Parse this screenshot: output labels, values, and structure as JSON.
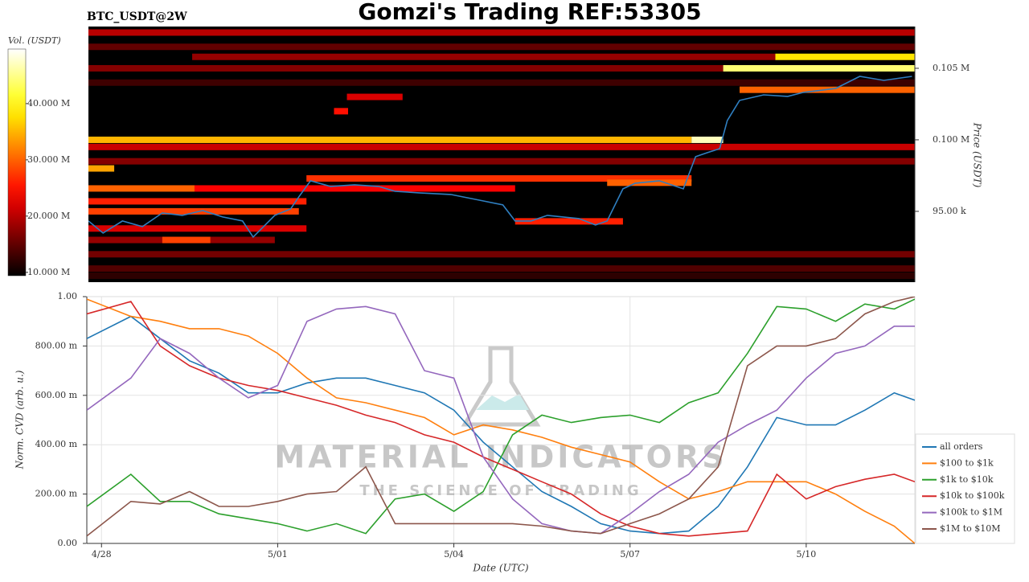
{
  "title": "Gomzi's Trading REF:53305",
  "symbol": "BTC_USDT@2W",
  "chart_data": [
    {
      "type": "heatmap",
      "ylabel": "Price (USDT)",
      "colorbar_label": "Vol. (USDT)",
      "colormap": "hot",
      "xlim": [
        -0.25,
        13.85
      ],
      "ylim": [
        90050,
        107920
      ],
      "yticks": [
        {
          "value": 95000,
          "label": "95.00 k"
        },
        {
          "value": 100000,
          "label": "0.100 M"
        },
        {
          "value": 105000,
          "label": "0.105 M"
        }
      ],
      "clim": [
        9.4,
        49.7
      ],
      "cticks": [
        {
          "value": 10,
          "label": "10.000 M"
        },
        {
          "value": 20,
          "label": "20.000 M"
        },
        {
          "value": 30,
          "label": "30.000 M"
        },
        {
          "value": 40,
          "label": "40.000 M"
        }
      ],
      "bands": [
        {
          "price": 107500,
          "start": -0.25,
          "end": 13.85,
          "volume": 20
        },
        {
          "price": 106500,
          "start": -0.25,
          "end": 13.85,
          "volume": 15
        },
        {
          "price": 105800,
          "start": 1.52,
          "end": 11.47,
          "volume": 18
        },
        {
          "price": 105800,
          "start": 11.47,
          "end": 13.85,
          "volume": 38
        },
        {
          "price": 105000,
          "start": -0.25,
          "end": 10.58,
          "volume": 17
        },
        {
          "price": 105000,
          "start": 10.58,
          "end": 13.85,
          "volume": 44
        },
        {
          "price": 104000,
          "start": -0.25,
          "end": 13.85,
          "volume": 13
        },
        {
          "price": 103500,
          "start": 10.86,
          "end": 13.85,
          "volume": 30
        },
        {
          "price": 103000,
          "start": 4.16,
          "end": 5.11,
          "volume": 22
        },
        {
          "price": 102000,
          "start": 3.94,
          "end": 4.18,
          "volume": 25
        },
        {
          "price": 100000,
          "start": -0.25,
          "end": 10.04,
          "volume": 35
        },
        {
          "price": 100000,
          "start": 10.04,
          "end": 10.58,
          "volume": 47
        },
        {
          "price": 99500,
          "start": -0.25,
          "end": 13.85,
          "volume": 21
        },
        {
          "price": 98500,
          "start": -0.25,
          "end": 13.85,
          "volume": 17
        },
        {
          "price": 98000,
          "start": -0.25,
          "end": 0.19,
          "volume": 34
        },
        {
          "price": 97300,
          "start": 3.47,
          "end": 10.04,
          "volume": 27
        },
        {
          "price": 97000,
          "start": 8.6,
          "end": 10.04,
          "volume": 30
        },
        {
          "price": 96600,
          "start": -0.25,
          "end": 1.56,
          "volume": 30
        },
        {
          "price": 96600,
          "start": 1.56,
          "end": 7.03,
          "volume": 24
        },
        {
          "price": 95700,
          "start": -0.25,
          "end": 3.47,
          "volume": 26
        },
        {
          "price": 95000,
          "start": -0.25,
          "end": 3.34,
          "volume": 28
        },
        {
          "price": 94300,
          "start": 7.03,
          "end": 8.87,
          "volume": 26
        },
        {
          "price": 93800,
          "start": -0.25,
          "end": 3.47,
          "volume": 22
        },
        {
          "price": 93000,
          "start": -0.25,
          "end": 2.93,
          "volume": 18
        },
        {
          "price": 93000,
          "start": 1.01,
          "end": 1.83,
          "volume": 28
        },
        {
          "price": 92000,
          "start": -0.25,
          "end": 13.85,
          "volume": 16
        },
        {
          "price": 91000,
          "start": -0.25,
          "end": 13.85,
          "volume": 14
        },
        {
          "price": 90500,
          "start": -0.25,
          "end": 13.85,
          "volume": 12
        }
      ],
      "line": {
        "color": "#2f7fc1",
        "x": [
          -0.25,
          0,
          0.33,
          0.67,
          1.01,
          1.35,
          1.7,
          2.04,
          2.38,
          2.56,
          2.93,
          3.2,
          3.34,
          3.54,
          3.88,
          4.29,
          4.7,
          4.98,
          5.39,
          5.93,
          6.48,
          6.82,
          7.03,
          7.3,
          7.58,
          7.85,
          8.12,
          8.4,
          8.6,
          8.87,
          9.08,
          9.49,
          9.9,
          10.11,
          10.31,
          10.52,
          10.65,
          10.86,
          11.27,
          11.68,
          11.95,
          12.5,
          12.91,
          13.32,
          13.8
        ],
        "values": [
          94326,
          93483,
          94326,
          93933,
          94888,
          94719,
          95056,
          94607,
          94326,
          93202,
          94719,
          95168,
          96011,
          97135,
          96742,
          96854,
          96742,
          96404,
          96292,
          96180,
          95730,
          95449,
          94326,
          94326,
          94719,
          94607,
          94494,
          94045,
          94326,
          96573,
          96966,
          97135,
          96573,
          98820,
          99101,
          99382,
          101348,
          102753,
          103146,
          103034,
          103315,
          103595,
          104438,
          104157,
          104438
        ]
      }
    },
    {
      "type": "line",
      "xlabel": "Date (UTC)",
      "ylabel": "Norm. CVD (arb. u.)",
      "annotations": [
        "MATERIAL INDICATORS",
        "THE SCIENCE OF TRADING"
      ],
      "grid": true,
      "legend": "right",
      "xlim": [
        -0.25,
        13.85
      ],
      "ylim": [
        0,
        1
      ],
      "xticks": [
        {
          "value": 0,
          "label": "4/28"
        },
        {
          "value": 3,
          "label": "5/01"
        },
        {
          "value": 6,
          "label": "5/04"
        },
        {
          "value": 9,
          "label": "5/07"
        },
        {
          "value": 12,
          "label": "5/10"
        }
      ],
      "yticks": [
        {
          "value": 0,
          "label": "0.00"
        },
        {
          "value": 0.2,
          "label": "200.00 m"
        },
        {
          "value": 0.4,
          "label": "400.00 m"
        },
        {
          "value": 0.6,
          "label": "600.00 m"
        },
        {
          "value": 0.8,
          "label": "800.00 m"
        },
        {
          "value": 1,
          "label": "1.00"
        }
      ],
      "x": [
        -0.25,
        0.5,
        1,
        1.5,
        2,
        2.5,
        3,
        3.5,
        4,
        4.5,
        5,
        5.5,
        6,
        6.5,
        7,
        7.5,
        8,
        8.5,
        9,
        9.5,
        10,
        10.5,
        11,
        11.5,
        12,
        12.5,
        13,
        13.5,
        13.85
      ],
      "series": [
        {
          "name": "all orders",
          "color": "#1f77b4",
          "values": [
            0.83,
            0.92,
            0.83,
            0.74,
            0.69,
            0.61,
            0.61,
            0.65,
            0.67,
            0.67,
            0.64,
            0.61,
            0.54,
            0.41,
            0.31,
            0.21,
            0.15,
            0.08,
            0.05,
            0.04,
            0.05,
            0.15,
            0.31,
            0.51,
            0.48,
            0.48,
            0.54,
            0.61,
            0.58
          ]
        },
        {
          "name": "$100 to $1k",
          "color": "#ff7f0e",
          "values": [
            0.99,
            0.92,
            0.9,
            0.87,
            0.87,
            0.84,
            0.77,
            0.67,
            0.59,
            0.57,
            0.54,
            0.51,
            0.44,
            0.48,
            0.46,
            0.43,
            0.39,
            0.36,
            0.33,
            0.25,
            0.18,
            0.21,
            0.25,
            0.25,
            0.25,
            0.2,
            0.13,
            0.07,
            0.0
          ]
        },
        {
          "name": "$1k to $10k",
          "color": "#2ca02c",
          "values": [
            0.15,
            0.28,
            0.17,
            0.17,
            0.12,
            0.1,
            0.08,
            0.05,
            0.08,
            0.04,
            0.18,
            0.2,
            0.13,
            0.21,
            0.44,
            0.52,
            0.49,
            0.51,
            0.52,
            0.49,
            0.57,
            0.61,
            0.77,
            0.96,
            0.95,
            0.9,
            0.97,
            0.95,
            0.99
          ]
        },
        {
          "name": "$10k to $100k",
          "color": "#d62728",
          "values": [
            0.93,
            0.98,
            0.8,
            0.72,
            0.67,
            0.64,
            0.62,
            0.59,
            0.56,
            0.52,
            0.49,
            0.44,
            0.41,
            0.35,
            0.3,
            0.25,
            0.2,
            0.12,
            0.07,
            0.04,
            0.03,
            0.04,
            0.05,
            0.28,
            0.18,
            0.23,
            0.26,
            0.28,
            0.25
          ]
        },
        {
          "name": "$100k to $1M",
          "color": "#9467bd",
          "values": [
            0.54,
            0.67,
            0.83,
            0.77,
            0.67,
            0.59,
            0.64,
            0.9,
            0.95,
            0.96,
            0.93,
            0.7,
            0.67,
            0.35,
            0.18,
            0.08,
            0.05,
            0.04,
            0.12,
            0.21,
            0.28,
            0.41,
            0.48,
            0.54,
            0.67,
            0.77,
            0.8,
            0.88,
            0.88
          ]
        },
        {
          "name": "$1M to $10M",
          "color": "#8c564b",
          "values": [
            0.03,
            0.17,
            0.16,
            0.21,
            0.15,
            0.15,
            0.17,
            0.2,
            0.21,
            0.31,
            0.08,
            0.08,
            0.08,
            0.08,
            0.08,
            0.07,
            0.05,
            0.04,
            0.08,
            0.12,
            0.18,
            0.31,
            0.72,
            0.8,
            0.8,
            0.83,
            0.93,
            0.98,
            1.0
          ]
        }
      ]
    }
  ]
}
